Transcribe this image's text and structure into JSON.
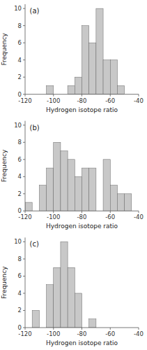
{
  "chart_data": [
    {
      "type": "histogram",
      "title": "(a)",
      "bins": [
        -110,
        -105,
        -100,
        -95,
        -90,
        -85,
        -80,
        -75,
        -70,
        -65,
        -60,
        -55,
        -50
      ],
      "values": [
        0,
        1,
        0,
        0,
        1,
        2,
        8,
        6,
        10,
        4,
        4,
        1
      ],
      "color": "#c8c8c8",
      "xlim": [
        -120,
        -40
      ],
      "ylim": [
        0,
        10.5
      ],
      "xticks": [
        -120,
        -100,
        -80,
        -60,
        -40
      ],
      "yticks": [
        0,
        2,
        4,
        6,
        8,
        10
      ],
      "xlabel": "Hydrogen isotope ratio",
      "ylabel": "Frequency"
    },
    {
      "type": "histogram",
      "title": "(b)",
      "bins": [
        -120,
        -115,
        -110,
        -105,
        -100,
        -95,
        -90,
        -85,
        -80,
        -75,
        -70,
        -65,
        -60,
        -55,
        -50,
        -45
      ],
      "values": [
        1,
        0,
        3,
        5,
        8,
        7,
        6,
        4,
        5,
        5,
        0,
        6,
        3,
        2,
        2
      ],
      "color": "#c8c8c8",
      "xlim": [
        -120,
        -40
      ],
      "ylim": [
        0,
        10.5
      ],
      "xticks": [
        -120,
        -100,
        -80,
        -60,
        -40
      ],
      "yticks": [
        0,
        2,
        4,
        6,
        8,
        10
      ],
      "xlabel": "Hydrogen isotope ratio",
      "ylabel": "Frequency"
    },
    {
      "type": "histogram",
      "title": "(c)",
      "bins": [
        -120,
        -115,
        -110,
        -105,
        -100,
        -95,
        -90,
        -85,
        -80,
        -75,
        -70
      ],
      "values": [
        0,
        2,
        0,
        5,
        7,
        10,
        7,
        4,
        0,
        1
      ],
      "color": "#c8c8c8",
      "xlim": [
        -120,
        -40
      ],
      "ylim": [
        0,
        10.5
      ],
      "xticks": [
        -120,
        -100,
        -80,
        -60,
        -40
      ],
      "yticks": [
        0,
        2,
        4,
        6,
        8,
        10
      ],
      "xlabel": "Hydrogen isotope ratio",
      "ylabel": "Frequency"
    }
  ]
}
